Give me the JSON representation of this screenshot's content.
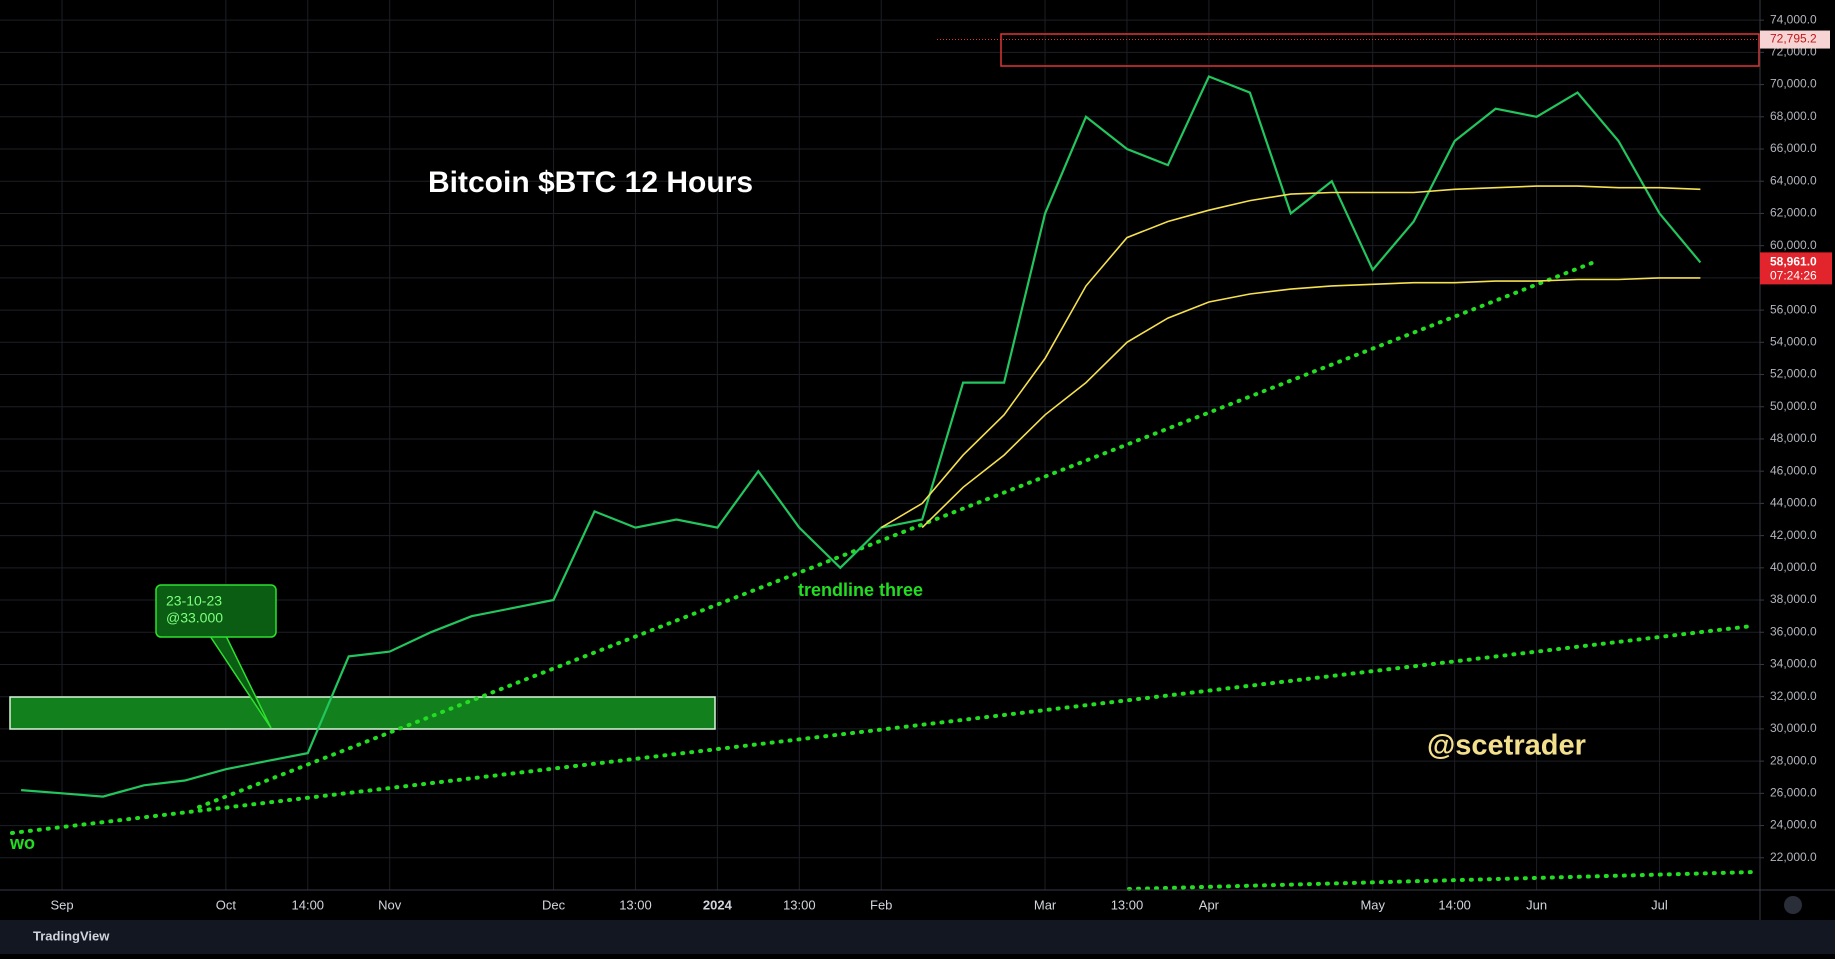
{
  "chart_data": {
    "type": "line",
    "title": "Bitcoin $BTC 12 Hours",
    "annotations": {
      "handle": "@scetrader",
      "trendline": "trendline three",
      "trendline_two": "wo",
      "callout_date": "23-10-23",
      "callout_price": "@33.000"
    },
    "brand": "TradingView",
    "categories": [
      null,
      "Sep",
      null,
      null,
      null,
      "Oct",
      null,
      "14:00",
      null,
      "Nov",
      null,
      null,
      null,
      "Dec",
      null,
      "13:00",
      null,
      "2024",
      null,
      "13:00",
      null,
      "Feb",
      null,
      null,
      null,
      "Mar",
      null,
      "13:00",
      null,
      "Apr",
      null,
      null,
      null,
      "May",
      null,
      "14:00",
      null,
      "Jun",
      null,
      null,
      "Jul",
      null
    ],
    "series": [
      {
        "color": "#22c55e",
        "values": [
          26200,
          26000,
          25800,
          26500,
          26800,
          27500,
          28000,
          28500,
          34500,
          34800,
          36000,
          37000,
          37500,
          38000,
          43500,
          42500,
          43000,
          42500,
          46000,
          42500,
          40000,
          42500,
          43000,
          51500,
          51500,
          62000,
          68000,
          66000,
          65000,
          70500,
          69500,
          62000,
          64000,
          58500,
          61500,
          66500,
          68500,
          68000,
          69500,
          66500,
          62000,
          58961
        ]
      },
      {
        "color": "#f5e050",
        "values": [
          null,
          null,
          null,
          null,
          null,
          null,
          null,
          null,
          null,
          null,
          null,
          null,
          null,
          null,
          null,
          null,
          null,
          null,
          null,
          null,
          null,
          42500,
          44000,
          47000,
          49500,
          53000,
          57500,
          60500,
          61500,
          62200,
          62800,
          63200,
          63300,
          63300,
          63300,
          63500,
          63600,
          63700,
          63700,
          63600,
          63600,
          63500
        ]
      },
      {
        "color": "#f5e050",
        "values": [
          null,
          null,
          null,
          null,
          null,
          null,
          null,
          null,
          null,
          null,
          null,
          null,
          null,
          null,
          null,
          null,
          null,
          null,
          null,
          null,
          null,
          null,
          42500,
          45000,
          47000,
          49500,
          51500,
          54000,
          55500,
          56500,
          57000,
          57300,
          57500,
          57600,
          57700,
          57700,
          57800,
          57800,
          57900,
          57900,
          58000,
          58000
        ]
      }
    ],
    "ylim": [
      20000,
      75250
    ],
    "yticks": [
      {
        "value": 22000,
        "label": "22,000.0"
      },
      {
        "value": 24000,
        "label": "24,000.0"
      },
      {
        "value": 26000,
        "label": "26,000.0"
      },
      {
        "value": 28000,
        "label": "28,000.0"
      },
      {
        "value": 30000,
        "label": "30,000.0"
      },
      {
        "value": 32000,
        "label": "32,000.0"
      },
      {
        "value": 34000,
        "label": "34,000.0"
      },
      {
        "value": 36000,
        "label": "36,000.0"
      },
      {
        "value": 38000,
        "label": "38,000.0"
      },
      {
        "value": 40000,
        "label": "40,000.0"
      },
      {
        "value": 42000,
        "label": "42,000.0"
      },
      {
        "value": 44000,
        "label": "44,000.0"
      },
      {
        "value": 46000,
        "label": "46,000.0"
      },
      {
        "value": 48000,
        "label": "48,000.0"
      },
      {
        "value": 50000,
        "label": "50,000.0"
      },
      {
        "value": 52000,
        "label": "52,000.0"
      },
      {
        "value": 54000,
        "label": "54,000.0"
      },
      {
        "value": 56000,
        "label": "56,000.0"
      },
      {
        "value": 58000,
        "label": "58,000.0"
      },
      {
        "value": 60000,
        "label": "60,000.0"
      },
      {
        "value": 62000,
        "label": "62,000.0"
      },
      {
        "value": 64000,
        "label": "64,000.0"
      },
      {
        "value": 66000,
        "label": "66,000.0"
      },
      {
        "value": 68000,
        "label": "68,000.0"
      },
      {
        "value": 70000,
        "label": "70,000.0"
      },
      {
        "value": 72000,
        "label": "72,000.0"
      },
      {
        "value": 74000,
        "label": "74,000.0"
      }
    ],
    "level": {
      "value": 72795.2,
      "label": "72,795.2"
    },
    "last_price": {
      "value": 58961,
      "label": "58,961.0",
      "countdown": "07:24:26"
    },
    "grid": true
  }
}
